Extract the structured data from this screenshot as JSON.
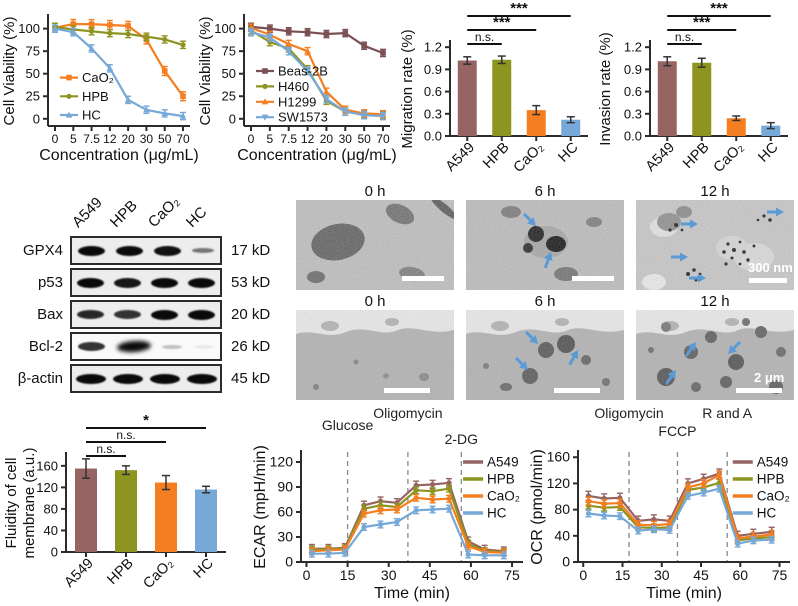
{
  "figure": {
    "background": "#ffffff"
  },
  "colors": {
    "a549_maroon": "#966463",
    "beas2b_maroon": "#7c4f53",
    "hpb_olive": "#8e9420",
    "cao2_orange": "#f57e20",
    "hc_blue": "#76a8d8",
    "arrow_blue": "#5b9bd5",
    "axis": "#2b2b2b",
    "dashed_line_gray": "#8a8a8a",
    "significance_black": "#111111"
  },
  "chart_data": [
    {
      "id": "viability1",
      "type": "line",
      "ylabel": "Cell Viability (%)",
      "xlabel": "Concentration (μg/mL)",
      "categories": [
        "0",
        "5",
        "7.5",
        "12",
        "20",
        "30",
        "50",
        "70"
      ],
      "yticks": [
        0,
        25,
        50,
        75,
        100
      ],
      "ylim": [
        -8,
        114
      ],
      "legend": "lower-left",
      "series": [
        {
          "name": "CaO₂",
          "color": "#f57e20",
          "marker": "square",
          "values": [
            101,
            105,
            105,
            104,
            103,
            88,
            53,
            25
          ],
          "err": 5
        },
        {
          "name": "HPB",
          "color": "#8e9420",
          "marker": "circle",
          "values": [
            102,
            99,
            97,
            95,
            94,
            91,
            88,
            82
          ],
          "err": 4
        },
        {
          "name": "HC",
          "color": "#76a8d8",
          "marker": "triangle-up",
          "values": [
            100,
            96,
            78,
            56,
            21,
            10,
            6,
            3
          ],
          "err": 4
        }
      ]
    },
    {
      "id": "viability2",
      "type": "line",
      "ylabel": "Cell Viability (%)",
      "xlabel": "Concentration (μg/mL)",
      "categories": [
        "0",
        "5",
        "7.5",
        "12",
        "20",
        "30",
        "50",
        "70"
      ],
      "yticks": [
        0,
        25,
        50,
        75,
        100
      ],
      "ylim": [
        -8,
        114
      ],
      "legend": "lower-left",
      "series": [
        {
          "name": "Beas-2B",
          "color": "#7c4f53",
          "marker": "square",
          "values": [
            102,
            100,
            97,
            96,
            94,
            95,
            81,
            73
          ],
          "err": 4
        },
        {
          "name": "H460",
          "color": "#8e9420",
          "marker": "circle",
          "values": [
            98,
            85,
            78,
            55,
            20,
            8,
            5,
            4
          ],
          "err": 4
        },
        {
          "name": "H1299",
          "color": "#f57e20",
          "marker": "triangle-up",
          "values": [
            101,
            93,
            83,
            75,
            30,
            10,
            6,
            5
          ],
          "err": 4
        },
        {
          "name": "SW1573",
          "color": "#76a8d8",
          "marker": "triangle-down",
          "values": [
            96,
            90,
            75,
            53,
            22,
            8,
            4,
            3
          ],
          "err": 4
        }
      ]
    },
    {
      "id": "migration",
      "type": "bar",
      "ylabel": "Migration rate (%)",
      "categories": [
        "A549",
        "HPB",
        "CaO₂",
        "HC"
      ],
      "yticks": [
        0,
        0.3,
        0.6,
        0.9,
        1.2
      ],
      "ytick_labels": [
        "0.0",
        "0.3",
        "0.6",
        "0.9",
        "1.2"
      ],
      "ylim": [
        0,
        1.27
      ],
      "values": [
        1.02,
        1.03,
        0.35,
        0.22
      ],
      "errors": [
        0.05,
        0.05,
        0.06,
        0.04
      ],
      "colors": [
        "#966463",
        "#8e9420",
        "#f57e20",
        "#76a8d8"
      ],
      "significance": [
        {
          "from": 0,
          "to": 1,
          "label": "n.s."
        },
        {
          "from": 0,
          "to": 2,
          "label": "***"
        },
        {
          "from": 0,
          "to": 3,
          "label": "***"
        }
      ]
    },
    {
      "id": "invasion",
      "type": "bar",
      "ylabel": "Invasion rate (%)",
      "categories": [
        "A549",
        "HPB",
        "CaO₂",
        "HC"
      ],
      "yticks": [
        0,
        0.3,
        0.6,
        0.9,
        1.2
      ],
      "ytick_labels": [
        "0.0",
        "0.3",
        "0.6",
        "0.9",
        "1.2"
      ],
      "ylim": [
        0,
        1.27
      ],
      "values": [
        1.01,
        0.99,
        0.24,
        0.14
      ],
      "errors": [
        0.06,
        0.06,
        0.03,
        0.04
      ],
      "colors": [
        "#966463",
        "#8e9420",
        "#f57e20",
        "#76a8d8"
      ],
      "significance": [
        {
          "from": 0,
          "to": 1,
          "label": "n.s."
        },
        {
          "from": 0,
          "to": 2,
          "label": "***"
        },
        {
          "from": 0,
          "to": 3,
          "label": "***"
        }
      ]
    },
    {
      "id": "fluidity",
      "type": "bar",
      "ylabel_lines": [
        "Fluidity of cell",
        "membrane (a.u.)"
      ],
      "categories": [
        "A549",
        "HPB",
        "CaO₂",
        "HC"
      ],
      "yticks": [
        0,
        40,
        80,
        120,
        160
      ],
      "ytick_labels": [
        "0",
        "40",
        "80",
        "120",
        "160"
      ],
      "ylim": [
        0,
        182
      ],
      "values": [
        155,
        152,
        129,
        116
      ],
      "errors": [
        18,
        8,
        13,
        6
      ],
      "colors": [
        "#966463",
        "#8e9420",
        "#f57e20",
        "#76a8d8"
      ],
      "significance": [
        {
          "from": 0,
          "to": 1,
          "label": "n.s."
        },
        {
          "from": 0,
          "to": 2,
          "label": "n.s."
        },
        {
          "from": 0,
          "to": 3,
          "label": "*"
        }
      ]
    },
    {
      "id": "ecar",
      "type": "line",
      "ylabel": "ECAR (mpH/min)",
      "xlabel": "Time (min)",
      "x": [
        2,
        8,
        14,
        21,
        27,
        33,
        40,
        46,
        52,
        59,
        65,
        72
      ],
      "xlim": [
        -2,
        79
      ],
      "xticks": [
        0,
        15,
        30,
        45,
        60,
        75
      ],
      "yticks": [
        0,
        30,
        60,
        90,
        120
      ],
      "ylim": [
        0,
        132
      ],
      "legend": "right",
      "vlines": [
        {
          "x": 15,
          "label": "Glucose",
          "ly": 24
        },
        {
          "x": 37,
          "label": "Oligomycin",
          "ly": 12
        },
        {
          "x": 56.5,
          "label": "2-DG",
          "ly": 38
        }
      ],
      "series": [
        {
          "name": "A549",
          "color": "#966463",
          "marker": "circle",
          "values": [
            16,
            16,
            17,
            68,
            73,
            71,
            92,
            93,
            95,
            25,
            15,
            13
          ],
          "err": 5
        },
        {
          "name": "HPB",
          "color": "#8e9420",
          "marker": "circle",
          "values": [
            15,
            15,
            16,
            64,
            68,
            66,
            86,
            85,
            88,
            22,
            13,
            12
          ],
          "err": 4
        },
        {
          "name": "CaO₂",
          "color": "#f57e20",
          "marker": "circle",
          "values": [
            13,
            14,
            15,
            58,
            62,
            63,
            77,
            75,
            76,
            19,
            12,
            11
          ],
          "err": 4
        },
        {
          "name": "HC",
          "color": "#76a8d8",
          "marker": "circle",
          "values": [
            10,
            10,
            11,
            42,
            45,
            48,
            62,
            63,
            64,
            9,
            8,
            8
          ],
          "err": 4
        }
      ]
    },
    {
      "id": "ocr",
      "type": "line",
      "ylabel": "OCR (pmol/min)",
      "xlabel": "Time (min)",
      "x": [
        2,
        8,
        14,
        21,
        27,
        33,
        40,
        46,
        52,
        59,
        65,
        72
      ],
      "xlim": [
        -2,
        79
      ],
      "xticks": [
        0,
        15,
        30,
        45,
        60,
        75
      ],
      "yticks": [
        0,
        40,
        80,
        120,
        160
      ],
      "ylim": [
        0,
        168
      ],
      "legend": "right",
      "vlines": [
        {
          "x": 17.5,
          "label": "Oligomycin",
          "ly": 12
        },
        {
          "x": 36,
          "label": "FCCP",
          "ly": 30
        },
        {
          "x": 55,
          "label": "R and A",
          "ly": 12
        }
      ],
      "series": [
        {
          "name": "A549",
          "color": "#966463",
          "marker": "circle",
          "values": [
            101,
            97,
            98,
            63,
            65,
            63,
            120,
            127,
            135,
            40,
            43,
            46
          ],
          "err": 7
        },
        {
          "name": "HPB",
          "color": "#8e9420",
          "marker": "circle",
          "values": [
            86,
            83,
            84,
            53,
            52,
            53,
            110,
            114,
            121,
            33,
            36,
            38
          ],
          "err": 5
        },
        {
          "name": "CaO₂",
          "color": "#f57e20",
          "marker": "circle",
          "values": [
            93,
            89,
            90,
            57,
            56,
            58,
            114,
            120,
            133,
            36,
            39,
            42
          ],
          "err": 6
        },
        {
          "name": "HC",
          "color": "#76a8d8",
          "marker": "circle",
          "values": [
            74,
            71,
            70,
            48,
            50,
            49,
            101,
            106,
            112,
            28,
            33,
            34
          ],
          "err": 5
        }
      ]
    }
  ],
  "western_blot": {
    "lane_labels": [
      "A549",
      "HPB",
      "CaO₂",
      "HC"
    ],
    "rows": [
      {
        "protein": "GPX4",
        "size": "17 kD",
        "band_intensities": [
          0.9,
          0.95,
          0.85,
          0.4
        ]
      },
      {
        "protein": "p53",
        "size": "53 kD",
        "band_intensities": [
          0.88,
          0.82,
          0.9,
          1.0
        ]
      },
      {
        "protein": "Bax",
        "size": "20 kD",
        "band_intensities": [
          0.75,
          0.7,
          0.92,
          0.88
        ]
      },
      {
        "protein": "Bcl-2",
        "size": "26 kD",
        "band_intensities": [
          0.7,
          0.9,
          0.12,
          0.04
        ]
      },
      {
        "protein": "β-actin",
        "size": "45 kD",
        "band_intensities": [
          0.95,
          0.95,
          0.92,
          0.9
        ]
      }
    ]
  },
  "tem": {
    "rows": [
      {
        "panels": [
          {
            "title": "0 h",
            "arrows": 0,
            "scale_label": ""
          },
          {
            "title": "6 h",
            "arrows": 2,
            "scale_label": ""
          },
          {
            "title": "12 h",
            "arrows": 4,
            "scale_label": "300 nm"
          }
        ]
      },
      {
        "panels": [
          {
            "title": "0 h",
            "arrows": 0,
            "scale_label": ""
          },
          {
            "title": "6 h",
            "arrows": 3,
            "scale_label": ""
          },
          {
            "title": "12 h",
            "arrows": 3,
            "scale_label": "2 μm"
          }
        ]
      }
    ]
  }
}
